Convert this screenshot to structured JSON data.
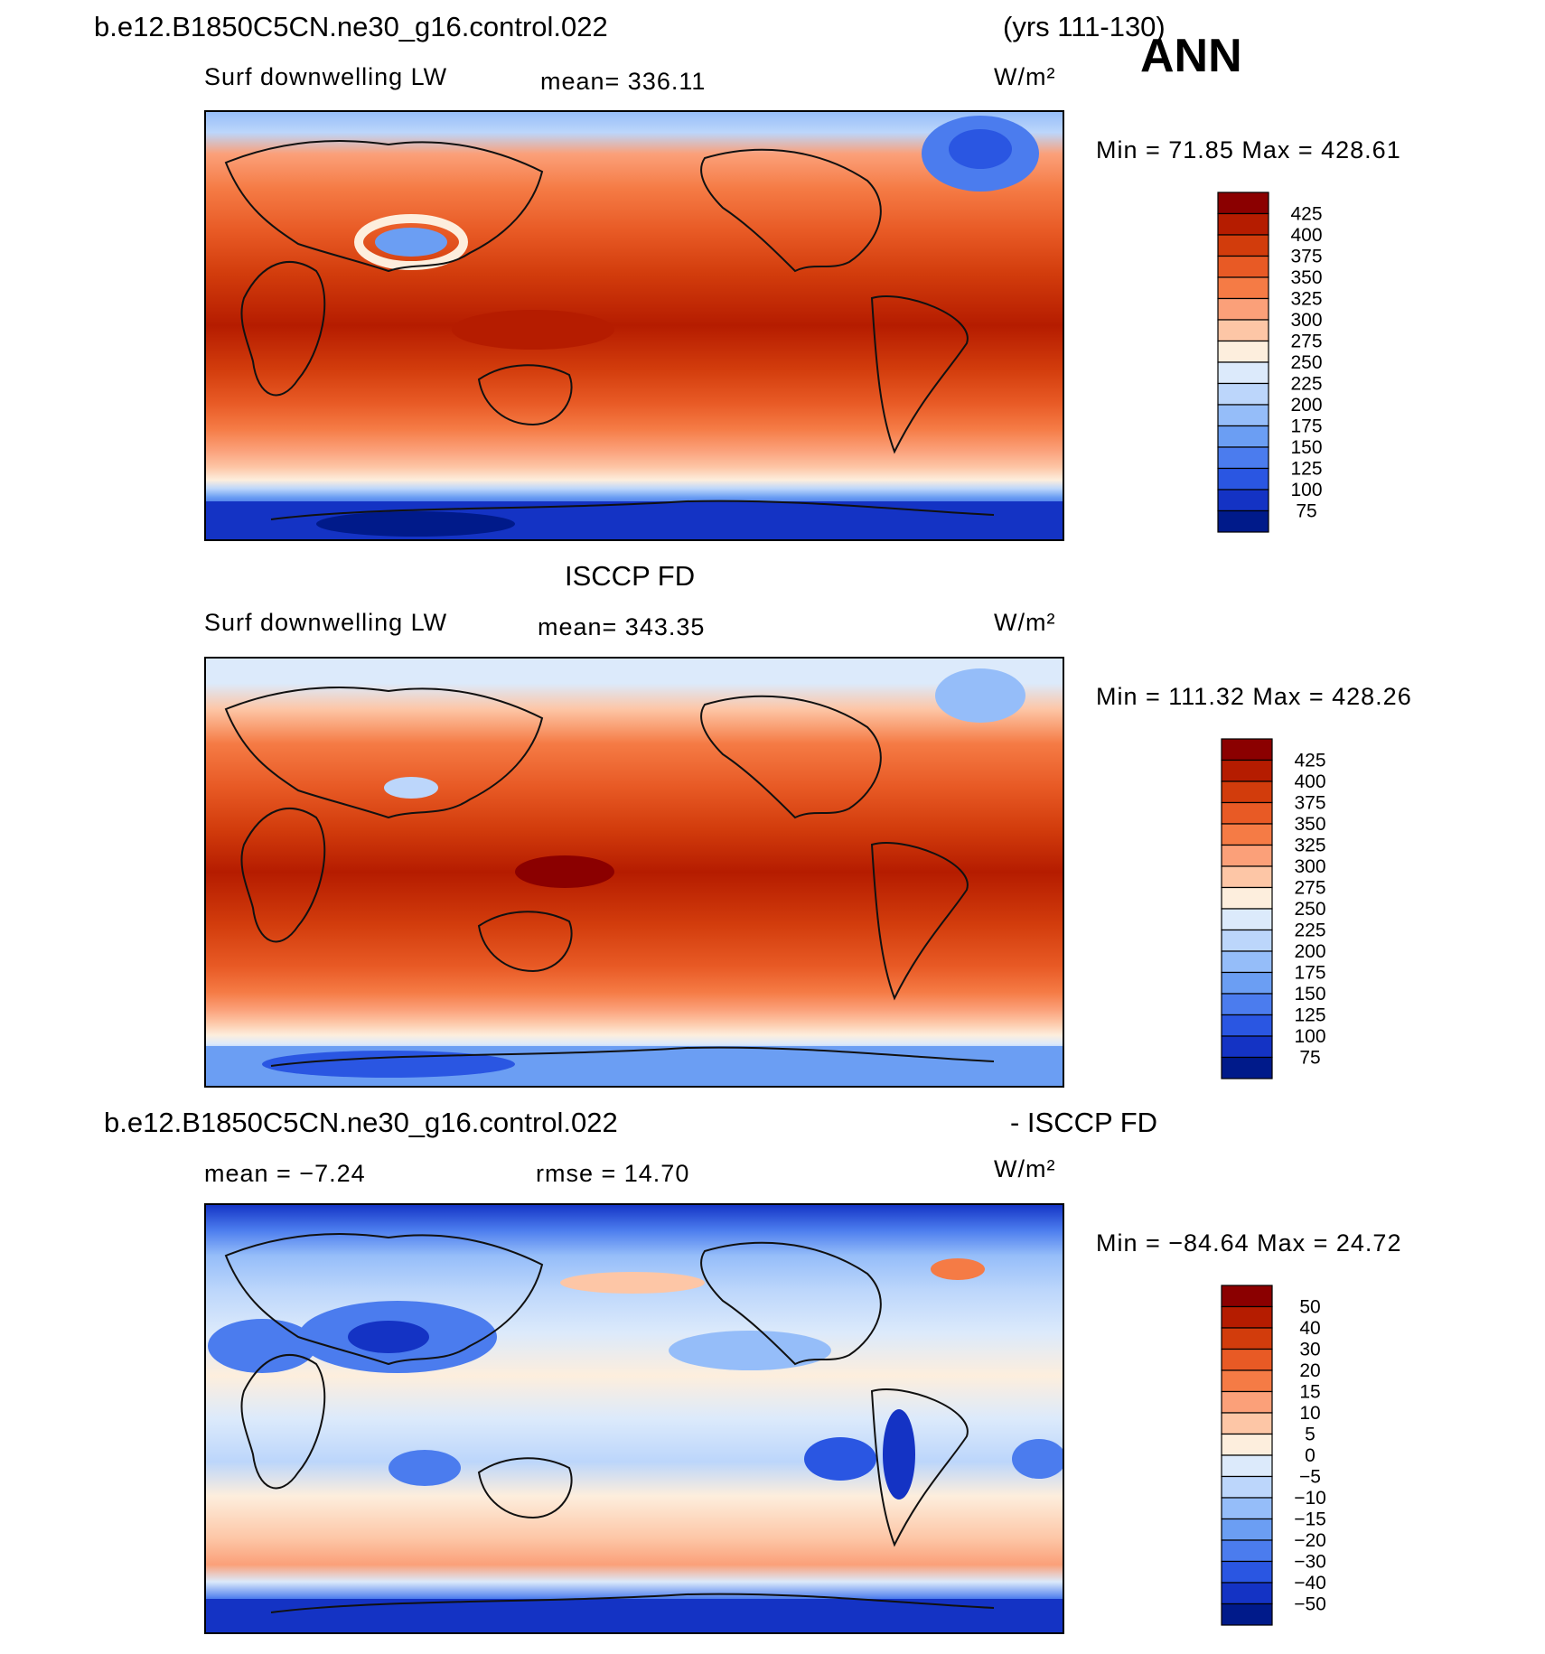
{
  "header": {
    "case_name": "b.e12.B1850C5CN.ne30_g16.control.022",
    "years": "(yrs 111-130)",
    "season": "ANN"
  },
  "colors": {
    "ocean_frame": "#000000",
    "coast": "#111111"
  },
  "chart_data": [
    {
      "type": "heatmap",
      "title": "",
      "field_label": "Surf downwelling LW",
      "mean_label": "mean=  336.11",
      "units": "W/m²",
      "min_max_label": "Min =   71.85 Max  = 428.61",
      "min": 71.85,
      "max": 428.61,
      "mean": 336.11,
      "colorbar": {
        "levels": [
          "425",
          "400",
          "375",
          "350",
          "325",
          "300",
          "275",
          "250",
          "225",
          "200",
          "175",
          "150",
          "125",
          "100",
          "75"
        ],
        "colors": [
          "#8b0000",
          "#b51c00",
          "#d23c0c",
          "#e85a25",
          "#f57b45",
          "#fba079",
          "#fdc6a6",
          "#fdeedd",
          "#dceafb",
          "#bcd6fb",
          "#95bdf9",
          "#6b9ef3",
          "#4b7cee",
          "#2a56e2",
          "#1433c4",
          "#001a8a"
        ]
      }
    },
    {
      "type": "heatmap",
      "title": "ISCCP FD",
      "field_label": "Surf downwelling LW",
      "mean_label": "mean=  343.35",
      "units": "W/m²",
      "min_max_label": "Min  =  111.32  Max  =  428.26",
      "min": 111.32,
      "max": 428.26,
      "mean": 343.35,
      "colorbar": {
        "levels": [
          "425",
          "400",
          "375",
          "350",
          "325",
          "300",
          "275",
          "250",
          "225",
          "200",
          "175",
          "150",
          "125",
          "100",
          "75"
        ],
        "colors": [
          "#8b0000",
          "#b51c00",
          "#d23c0c",
          "#e85a25",
          "#f57b45",
          "#fba079",
          "#fdc6a6",
          "#fdeedd",
          "#dceafb",
          "#bcd6fb",
          "#95bdf9",
          "#6b9ef3",
          "#4b7cee",
          "#2a56e2",
          "#1433c4",
          "#001a8a"
        ]
      }
    },
    {
      "type": "heatmap",
      "title": "b.e12.B1850C5CN.ne30_g16.control.022",
      "title_right": "- ISCCP FD",
      "mean_label": "mean  =    −7.24",
      "rmse_label": "rmse  =    14.70",
      "units": "W/m²",
      "min_max_label": "Min  =  −84.64  Max  =    24.72",
      "min": -84.64,
      "max": 24.72,
      "mean": -7.24,
      "rmse": 14.7,
      "colorbar": {
        "levels": [
          "50",
          "40",
          "30",
          "20",
          "15",
          "10",
          "5",
          "0",
          "−5",
          "−10",
          "−15",
          "−20",
          "−30",
          "−40",
          "−50"
        ],
        "colors": [
          "#8b0000",
          "#b51c00",
          "#d23c0c",
          "#e85a25",
          "#f57b45",
          "#fba079",
          "#fdc6a6",
          "#fdeedd",
          "#dceafb",
          "#bcd6fb",
          "#95bdf9",
          "#6b9ef3",
          "#4b7cee",
          "#2a56e2",
          "#1433c4",
          "#001a8a"
        ]
      }
    }
  ]
}
